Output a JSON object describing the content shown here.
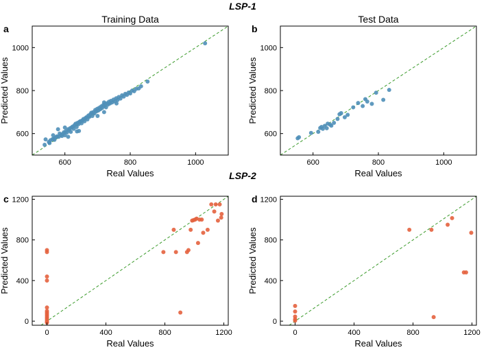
{
  "section_top": "LSP-1",
  "section_bottom": "LSP-2",
  "colors": {
    "lsp1_points": "#4f8fb8",
    "lsp2_points": "#e4623e",
    "identity_line": "#3a9a2a"
  },
  "chart_data": [
    {
      "type": "scatter",
      "panel": "a",
      "title": "Training Data",
      "xlabel": "Real Values",
      "ylabel": "Predicted Values",
      "xlim": [
        500,
        1100
      ],
      "ylim": [
        500,
        1100
      ],
      "xticks": [
        600,
        800,
        1000
      ],
      "yticks": [
        600,
        800,
        1000
      ],
      "reference_line": "y = x",
      "color": "#4f8fb8",
      "points": [
        [
          538,
          548
        ],
        [
          541,
          573
        ],
        [
          551,
          561
        ],
        [
          553,
          556
        ],
        [
          556,
          569
        ],
        [
          562,
          574
        ],
        [
          566,
          576
        ],
        [
          568,
          571
        ],
        [
          572,
          582
        ],
        [
          576,
          587
        ],
        [
          581,
          585
        ],
        [
          584,
          600
        ],
        [
          588,
          593
        ],
        [
          591,
          589
        ],
        [
          594,
          599
        ],
        [
          597,
          606
        ],
        [
          600,
          592
        ],
        [
          603,
          611
        ],
        [
          606,
          605
        ],
        [
          610,
          620
        ],
        [
          613,
          616
        ],
        [
          616,
          625
        ],
        [
          618,
          608
        ],
        [
          621,
          629
        ],
        [
          624,
          633
        ],
        [
          627,
          622
        ],
        [
          630,
          640
        ],
        [
          633,
          646
        ],
        [
          636,
          631
        ],
        [
          639,
          650
        ],
        [
          642,
          644
        ],
        [
          645,
          655
        ],
        [
          648,
          658
        ],
        [
          651,
          648
        ],
        [
          654,
          662
        ],
        [
          657,
          668
        ],
        [
          660,
          657
        ],
        [
          663,
          672
        ],
        [
          666,
          676
        ],
        [
          669,
          666
        ],
        [
          672,
          684
        ],
        [
          675,
          678
        ],
        [
          678,
          690
        ],
        [
          681,
          697
        ],
        [
          684,
          682
        ],
        [
          687,
          700
        ],
        [
          690,
          694
        ],
        [
          693,
          710
        ],
        [
          696,
          703
        ],
        [
          699,
          715
        ],
        [
          702,
          707
        ],
        [
          705,
          720
        ],
        [
          708,
          713
        ],
        [
          711,
          726
        ],
        [
          714,
          719
        ],
        [
          717,
          732
        ],
        [
          720,
          728
        ],
        [
          723,
          738
        ],
        [
          726,
          722
        ],
        [
          729,
          741
        ],
        [
          732,
          735
        ],
        [
          735,
          748
        ],
        [
          738,
          740
        ],
        [
          741,
          752
        ],
        [
          745,
          745
        ],
        [
          749,
          758
        ],
        [
          753,
          750
        ],
        [
          757,
          764
        ],
        [
          761,
          756
        ],
        [
          765,
          770
        ],
        [
          770,
          763
        ],
        [
          775,
          778
        ],
        [
          780,
          772
        ],
        [
          785,
          785
        ],
        [
          790,
          780
        ],
        [
          795,
          791
        ],
        [
          800,
          787
        ],
        [
          806,
          800
        ],
        [
          812,
          797
        ],
        [
          818,
          808
        ],
        [
          826,
          810
        ],
        [
          833,
          820
        ],
        [
          853,
          842
        ],
        [
          637,
          610
        ],
        [
          579,
          620
        ],
        [
          564,
          592
        ],
        [
          610,
          585
        ],
        [
          643,
          612
        ],
        [
          720,
          745
        ],
        [
          758,
          740
        ],
        [
          600,
          628
        ],
        [
          700,
          682
        ],
        [
          720,
          700
        ],
        [
          1029,
          1020
        ]
      ]
    },
    {
      "type": "scatter",
      "panel": "b",
      "title": "Test Data",
      "xlabel": "Real Values",
      "ylabel": "Predicted Values",
      "xlim": [
        500,
        1100
      ],
      "ylim": [
        500,
        1100
      ],
      "xticks": [
        600,
        800,
        1000
      ],
      "yticks": [
        600,
        800,
        1000
      ],
      "reference_line": "y = x",
      "color": "#4f8fb8",
      "points": [
        [
          553,
          578
        ],
        [
          557,
          583
        ],
        [
          594,
          603
        ],
        [
          616,
          608
        ],
        [
          622,
          626
        ],
        [
          626,
          631
        ],
        [
          630,
          622
        ],
        [
          636,
          636
        ],
        [
          642,
          625
        ],
        [
          645,
          646
        ],
        [
          652,
          642
        ],
        [
          656,
          637
        ],
        [
          664,
          650
        ],
        [
          675,
          668
        ],
        [
          681,
          690
        ],
        [
          686,
          695
        ],
        [
          697,
          676
        ],
        [
          706,
          687
        ],
        [
          723,
          722
        ],
        [
          738,
          742
        ],
        [
          752,
          728
        ],
        [
          760,
          760
        ],
        [
          766,
          749
        ],
        [
          780,
          738
        ],
        [
          793,
          790
        ],
        [
          815,
          757
        ],
        [
          833,
          803
        ]
      ]
    },
    {
      "type": "scatter",
      "panel": "c",
      "xlabel": "Real Values",
      "ylabel": "Predicted Values",
      "xlim": [
        -100,
        1230
      ],
      "ylim": [
        -40,
        1230
      ],
      "xticks": [
        0,
        400,
        800,
        1200
      ],
      "yticks": [
        0,
        400,
        800,
        1200
      ],
      "reference_line": "y = x",
      "color": "#e4623e",
      "points": [
        [
          0,
          700
        ],
        [
          0,
          680
        ],
        [
          0,
          440
        ],
        [
          0,
          400
        ],
        [
          0,
          135
        ],
        [
          0,
          100
        ],
        [
          0,
          85
        ],
        [
          0,
          70
        ],
        [
          0,
          55
        ],
        [
          0,
          40
        ],
        [
          0,
          25
        ],
        [
          0,
          10
        ],
        [
          0,
          -5
        ],
        [
          0,
          -15
        ],
        [
          790,
          680
        ],
        [
          860,
          900
        ],
        [
          875,
          680
        ],
        [
          905,
          85
        ],
        [
          950,
          680
        ],
        [
          960,
          700
        ],
        [
          975,
          900
        ],
        [
          985,
          990
        ],
        [
          995,
          995
        ],
        [
          1005,
          1000
        ],
        [
          1015,
          1010
        ],
        [
          1025,
          770
        ],
        [
          1035,
          1000
        ],
        [
          1050,
          1000
        ],
        [
          1060,
          870
        ],
        [
          1090,
          900
        ],
        [
          1115,
          1150
        ],
        [
          1135,
          1080
        ],
        [
          1145,
          1150
        ],
        [
          1160,
          990
        ],
        [
          1172,
          1150
        ],
        [
          1182,
          1020
        ],
        [
          1185,
          1055
        ]
      ]
    },
    {
      "type": "scatter",
      "panel": "d",
      "xlabel": "Real Values",
      "ylabel": "Predicted Values",
      "xlim": [
        -100,
        1230
      ],
      "ylim": [
        -40,
        1230
      ],
      "xticks": [
        0,
        400,
        800,
        1200
      ],
      "yticks": [
        0,
        400,
        800,
        1200
      ],
      "reference_line": "y = x",
      "color": "#e4623e",
      "points": [
        [
          0,
          150
        ],
        [
          0,
          95
        ],
        [
          0,
          45
        ],
        [
          0,
          20
        ],
        [
          0,
          5
        ],
        [
          775,
          900
        ],
        [
          925,
          900
        ],
        [
          940,
          40
        ],
        [
          1035,
          950
        ],
        [
          1065,
          1015
        ],
        [
          1145,
          480
        ],
        [
          1160,
          480
        ],
        [
          1195,
          870
        ]
      ]
    }
  ]
}
